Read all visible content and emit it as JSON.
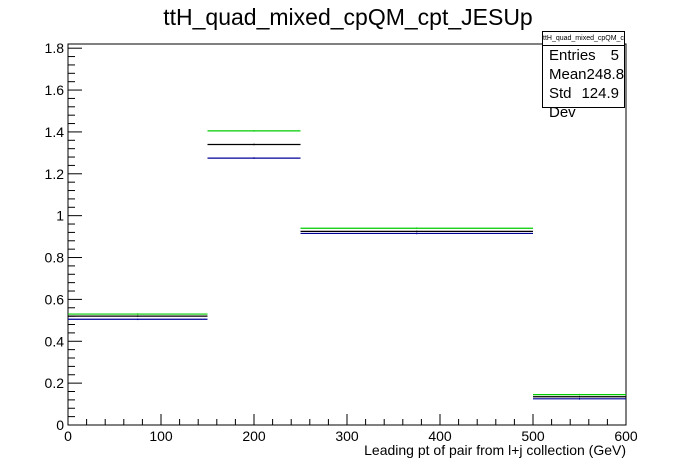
{
  "chart_data": {
    "type": "step-histogram",
    "title": "ttH_quad_mixed_cpQM_cpt_JESUp",
    "xlabel": "Leading pt of pair from l+j collection (GeV)",
    "ylabel": "",
    "xlim": [
      0,
      600
    ],
    "ylim": [
      0,
      1.82
    ],
    "x_ticks": [
      0,
      100,
      200,
      300,
      400,
      500,
      600
    ],
    "y_ticks": [
      0,
      0.2,
      0.4,
      0.6,
      0.8,
      1,
      1.2,
      1.4,
      1.6,
      1.8
    ],
    "bin_edges": [
      0,
      150,
      250,
      500,
      600
    ],
    "series": [
      {
        "color": "#00cc00",
        "values": [
          0.53,
          1.405,
          0.94,
          0.145
        ]
      },
      {
        "color": "#000000",
        "values": [
          0.52,
          1.34,
          0.925,
          0.135
        ]
      },
      {
        "color": "#000099",
        "values": [
          0.505,
          1.275,
          0.915,
          0.125
        ]
      }
    ],
    "stats_box": {
      "header": "ttH_quad_mixed_cpQM_cpt_JESUp",
      "rows": [
        {
          "label": "Entries",
          "value": "5"
        },
        {
          "label": "Mean",
          "value": "248.8"
        },
        {
          "label": "Std Dev",
          "value": "124.9"
        }
      ]
    }
  }
}
